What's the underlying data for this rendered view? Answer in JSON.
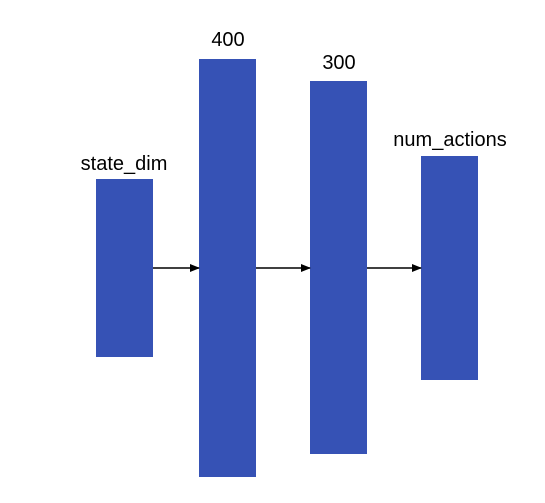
{
  "diagram": {
    "colors": {
      "layer_fill": "#3652b5",
      "arrow": "#000000",
      "label": "#000000"
    },
    "layers": [
      {
        "label": "state_dim"
      },
      {
        "label": "400"
      },
      {
        "label": "300"
      },
      {
        "label": "num_actions"
      }
    ],
    "connections": [
      {
        "from": "state_dim",
        "to": "400"
      },
      {
        "from": "400",
        "to": "300"
      },
      {
        "from": "300",
        "to": "num_actions"
      }
    ]
  }
}
